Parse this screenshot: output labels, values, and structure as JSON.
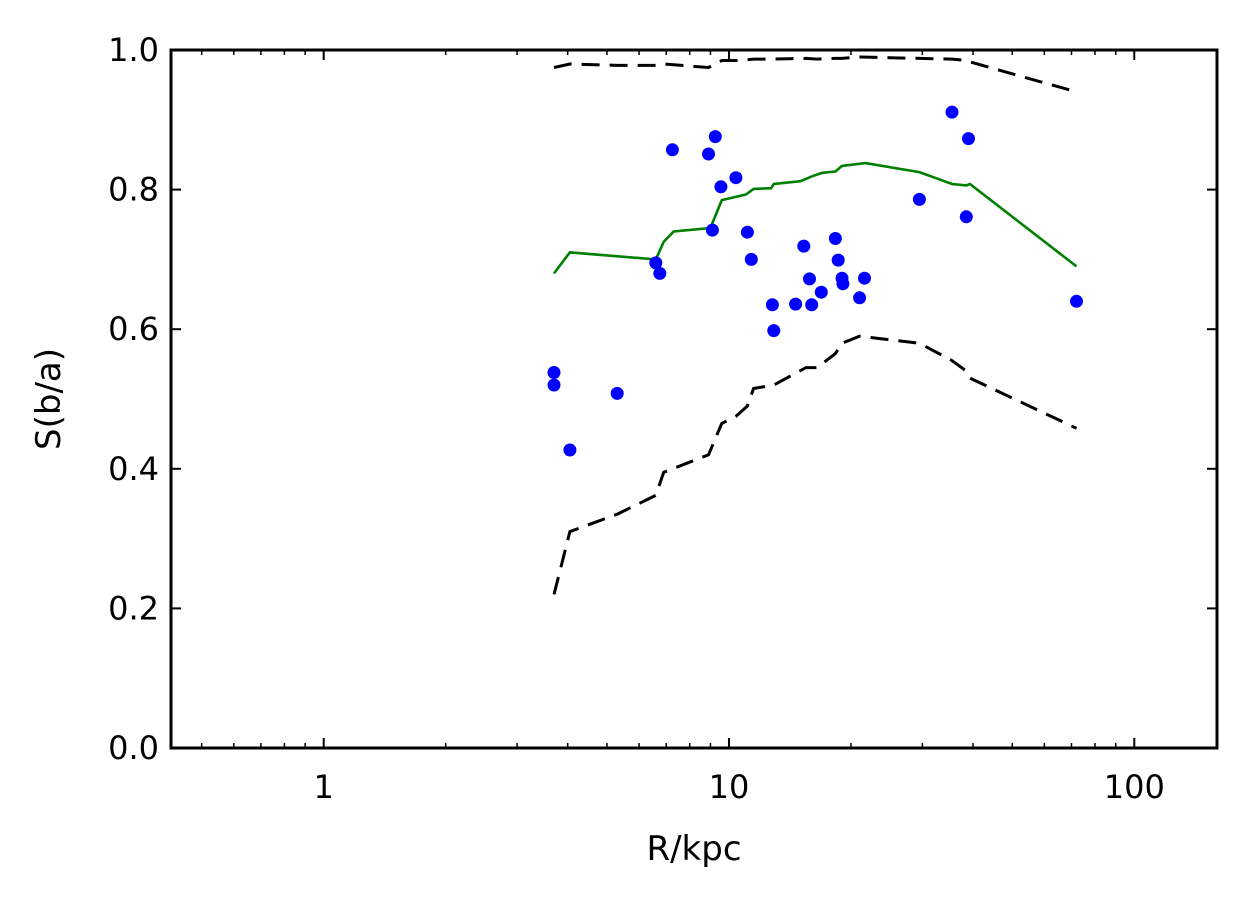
{
  "chart_data": {
    "type": "scatter",
    "title": "",
    "xlabel": "R/kpc",
    "ylabel": "S(b/a)",
    "xscale": "log",
    "xlim": [
      0.42,
      160
    ],
    "ylim": [
      0.0,
      1.0
    ],
    "grid": false,
    "legend": "none",
    "x_ticks": [
      {
        "value": 1,
        "label": "1"
      },
      {
        "value": 10,
        "label": "10"
      },
      {
        "value": 100,
        "label": "100"
      }
    ],
    "y_ticks": [
      {
        "value": 0.0,
        "label": "0.0"
      },
      {
        "value": 0.2,
        "label": "0.2"
      },
      {
        "value": 0.4,
        "label": "0.4"
      },
      {
        "value": 0.6,
        "label": "0.6"
      },
      {
        "value": 0.8,
        "label": "0.8"
      },
      {
        "value": 1.0,
        "label": "1.0"
      }
    ],
    "points": {
      "color": "#0000ff",
      "x": [
        3.7,
        3.7,
        4.05,
        5.3,
        6.6,
        6.75,
        7.25,
        8.9,
        9.1,
        9.25,
        9.55,
        10.4,
        11.1,
        11.35,
        12.8,
        12.9,
        14.6,
        15.3,
        15.8,
        16.0,
        16.9,
        18.3,
        18.6,
        19.0,
        19.1,
        21.0,
        21.6,
        29.5,
        35.5,
        38.5,
        39.0,
        72.0
      ],
      "y": [
        0.538,
        0.52,
        0.427,
        0.508,
        0.695,
        0.68,
        0.857,
        0.851,
        0.742,
        0.876,
        0.804,
        0.817,
        0.739,
        0.7,
        0.635,
        0.598,
        0.636,
        0.719,
        0.672,
        0.635,
        0.653,
        0.73,
        0.699,
        0.673,
        0.665,
        0.645,
        0.673,
        0.786,
        0.911,
        0.761,
        0.873,
        0.64
      ]
    },
    "series": [
      {
        "style": "solid",
        "color": "#008000",
        "x": [
          3.7,
          4.05,
          6.6,
          6.9,
          7.3,
          9.0,
          9.6,
          11.0,
          11.5,
          12.7,
          12.9,
          15.0,
          16.2,
          17.0,
          18.3,
          19.0,
          21.7,
          29.5,
          35.5,
          38.5,
          39.3,
          72.0
        ],
        "y": [
          0.68,
          0.71,
          0.7,
          0.725,
          0.74,
          0.745,
          0.785,
          0.793,
          0.801,
          0.802,
          0.808,
          0.812,
          0.82,
          0.824,
          0.826,
          0.834,
          0.838,
          0.825,
          0.808,
          0.806,
          0.808,
          0.69
        ]
      },
      {
        "style": "dashed",
        "color": "#000000",
        "x": [
          3.7,
          4.05,
          5.3,
          6.6,
          6.9,
          8.9,
          9.6,
          10.4,
          11.1,
          11.5,
          12.9,
          15.5,
          16.5,
          18.3,
          19.0,
          21.0,
          29.5,
          35.5,
          38.5,
          39.3,
          72.0
        ],
        "y": [
          0.975,
          0.98,
          0.978,
          0.978,
          0.98,
          0.975,
          0.985,
          0.985,
          0.986,
          0.987,
          0.987,
          0.988,
          0.987,
          0.988,
          0.988,
          0.99,
          0.988,
          0.987,
          0.985,
          0.983,
          0.94
        ]
      },
      {
        "style": "dashed",
        "color": "#000000",
        "x": [
          3.7,
          4.05,
          5.3,
          6.6,
          6.9,
          8.9,
          9.6,
          10.4,
          11.1,
          11.5,
          12.9,
          15.5,
          16.5,
          18.3,
          19.0,
          21.0,
          29.5,
          35.5,
          38.5,
          39.3,
          72.0
        ],
        "y": [
          0.22,
          0.31,
          0.335,
          0.362,
          0.395,
          0.42,
          0.465,
          0.475,
          0.49,
          0.515,
          0.52,
          0.545,
          0.545,
          0.565,
          0.58,
          0.59,
          0.58,
          0.555,
          0.54,
          0.53,
          0.458
        ]
      }
    ]
  }
}
